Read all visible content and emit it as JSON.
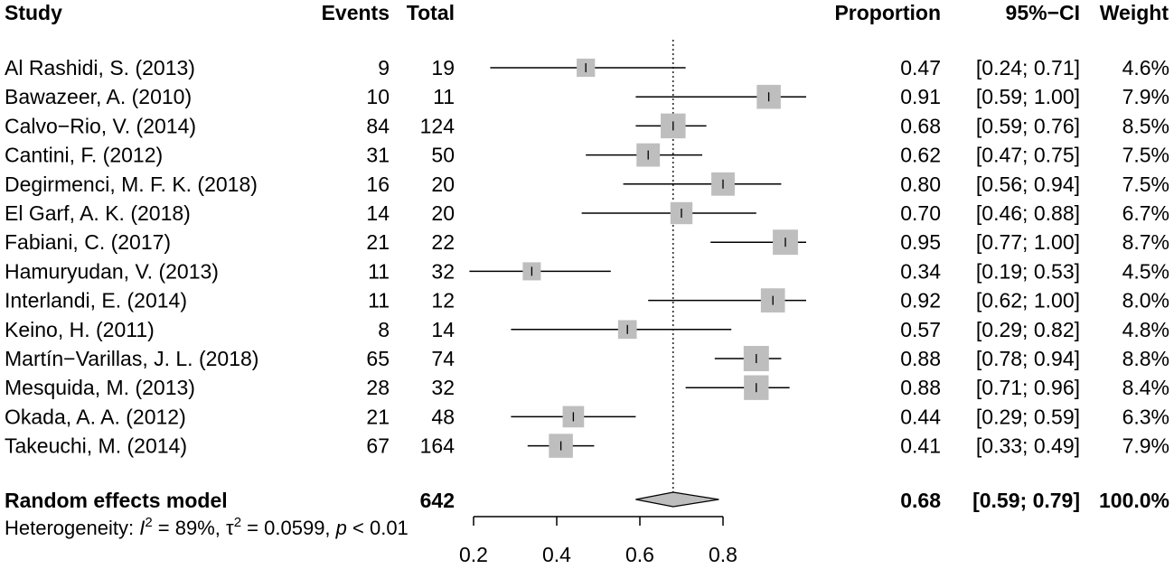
{
  "chart_data": {
    "type": "forest",
    "headers": {
      "study": "Study",
      "events": "Events",
      "total": "Total",
      "proportion": "Proportion",
      "ci": "95%−CI",
      "weight": "Weight"
    },
    "studies": [
      {
        "name": "Al Rashidi, S. (2013)",
        "events": "9",
        "total": "19",
        "prop": 0.47,
        "lower": 0.24,
        "upper": 0.71,
        "prop_label": "0.47",
        "ci_label": "[0.24; 0.71]",
        "weight": 4.6,
        "weight_label": "4.6%"
      },
      {
        "name": "Bawazeer, A. (2010)",
        "events": "10",
        "total": "11",
        "prop": 0.91,
        "lower": 0.59,
        "upper": 1.0,
        "prop_label": "0.91",
        "ci_label": "[0.59; 1.00]",
        "weight": 7.9,
        "weight_label": "7.9%"
      },
      {
        "name": "Calvo−Rio, V. (2014)",
        "events": "84",
        "total": "124",
        "prop": 0.68,
        "lower": 0.59,
        "upper": 0.76,
        "prop_label": "0.68",
        "ci_label": "[0.59; 0.76]",
        "weight": 8.5,
        "weight_label": "8.5%"
      },
      {
        "name": "Cantini, F. (2012)",
        "events": "31",
        "total": "50",
        "prop": 0.62,
        "lower": 0.47,
        "upper": 0.75,
        "prop_label": "0.62",
        "ci_label": "[0.47; 0.75]",
        "weight": 7.5,
        "weight_label": "7.5%"
      },
      {
        "name": "Degirmenci, M. F. K. (2018)",
        "events": "16",
        "total": "20",
        "prop": 0.8,
        "lower": 0.56,
        "upper": 0.94,
        "prop_label": "0.80",
        "ci_label": "[0.56; 0.94]",
        "weight": 7.5,
        "weight_label": "7.5%"
      },
      {
        "name": "El Garf, A. K. (2018)",
        "events": "14",
        "total": "20",
        "prop": 0.7,
        "lower": 0.46,
        "upper": 0.88,
        "prop_label": "0.70",
        "ci_label": "[0.46; 0.88]",
        "weight": 6.7,
        "weight_label": "6.7%"
      },
      {
        "name": "Fabiani, C. (2017)",
        "events": "21",
        "total": "22",
        "prop": 0.95,
        "lower": 0.77,
        "upper": 1.0,
        "prop_label": "0.95",
        "ci_label": "[0.77; 1.00]",
        "weight": 8.7,
        "weight_label": "8.7%"
      },
      {
        "name": "Hamuryudan, V. (2013)",
        "events": "11",
        "total": "32",
        "prop": 0.34,
        "lower": 0.19,
        "upper": 0.53,
        "prop_label": "0.34",
        "ci_label": "[0.19; 0.53]",
        "weight": 4.5,
        "weight_label": "4.5%"
      },
      {
        "name": "Interlandi, E. (2014)",
        "events": "11",
        "total": "12",
        "prop": 0.92,
        "lower": 0.62,
        "upper": 1.0,
        "prop_label": "0.92",
        "ci_label": "[0.62; 1.00]",
        "weight": 8.0,
        "weight_label": "8.0%"
      },
      {
        "name": "Keino, H. (2011)",
        "events": "8",
        "total": "14",
        "prop": 0.57,
        "lower": 0.29,
        "upper": 0.82,
        "prop_label": "0.57",
        "ci_label": "[0.29; 0.82]",
        "weight": 4.8,
        "weight_label": "4.8%"
      },
      {
        "name": "Martín−Varillas, J. L. (2018)",
        "events": "65",
        "total": "74",
        "prop": 0.88,
        "lower": 0.78,
        "upper": 0.94,
        "prop_label": "0.88",
        "ci_label": "[0.78; 0.94]",
        "weight": 8.8,
        "weight_label": "8.8%"
      },
      {
        "name": "Mesquida, M. (2013)",
        "events": "28",
        "total": "32",
        "prop": 0.88,
        "lower": 0.71,
        "upper": 0.96,
        "prop_label": "0.88",
        "ci_label": "[0.71; 0.96]",
        "weight": 8.4,
        "weight_label": "8.4%"
      },
      {
        "name": "Okada, A. A. (2012)",
        "events": "21",
        "total": "48",
        "prop": 0.44,
        "lower": 0.29,
        "upper": 0.59,
        "prop_label": "0.44",
        "ci_label": "[0.29; 0.59]",
        "weight": 6.3,
        "weight_label": "6.3%"
      },
      {
        "name": "Takeuchi, M. (2014)",
        "events": "67",
        "total": "164",
        "prop": 0.41,
        "lower": 0.33,
        "upper": 0.49,
        "prop_label": "0.41",
        "ci_label": "[0.33; 0.49]",
        "weight": 7.9,
        "weight_label": "7.9%"
      }
    ],
    "summary": {
      "label": "Random effects model",
      "total": "642",
      "prop": 0.68,
      "lower": 0.59,
      "upper": 0.79,
      "prop_label": "0.68",
      "ci_label": "[0.59; 0.79]",
      "weight_label": "100.0%"
    },
    "heterogeneity": {
      "prefix": "Heterogeneity: ",
      "i2_symbol": "I",
      "i2_value": " = 89%, ",
      "tau_symbol": "τ",
      "tau_value": " = 0.0599, ",
      "p_symbol": "p",
      "p_value": " < 0.01"
    },
    "x_axis": {
      "min": 0.2,
      "max": 0.8,
      "extent_max": 1.0,
      "ticks": [
        0.2,
        0.4,
        0.6,
        0.8
      ],
      "tick_labels": [
        "0.2",
        "0.4",
        "0.6",
        "0.8"
      ]
    },
    "reference_line": 0.68,
    "colors": {
      "box": "#bebebe",
      "diamond": "#bebebe",
      "line": "#000000"
    }
  }
}
